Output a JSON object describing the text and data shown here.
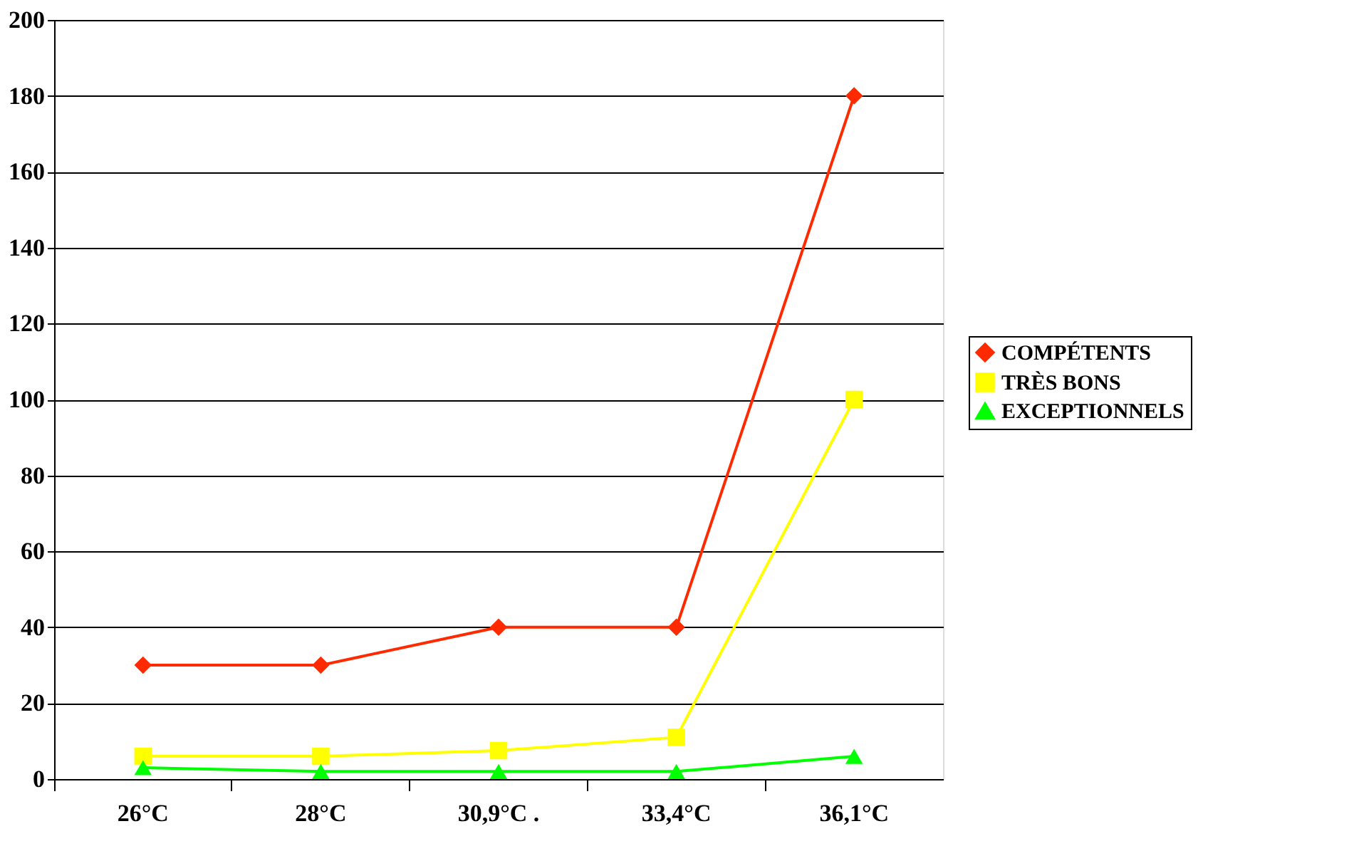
{
  "chart_data": {
    "type": "line",
    "categories": [
      "26°C",
      "28°C",
      "30,9°C  .",
      "33,4°C",
      "36,1°C"
    ],
    "series": [
      {
        "name": "COMPÉTENTS",
        "color": "#ff2a00",
        "marker": "diamond",
        "values": [
          30,
          30,
          40,
          40,
          180
        ]
      },
      {
        "name": "TRÈS BONS",
        "color": "#ffff00",
        "marker": "square",
        "values": [
          6,
          6,
          7.5,
          11,
          100
        ]
      },
      {
        "name": "EXCEPTIONNELS",
        "color": "#00ff00",
        "marker": "triangle",
        "values": [
          3,
          2,
          2,
          2,
          6
        ]
      }
    ],
    "ylim": [
      0,
      200
    ],
    "yticks": [
      0,
      20,
      40,
      60,
      80,
      100,
      120,
      140,
      160,
      180,
      200
    ],
    "grid": "y",
    "legend": "right",
    "line_style": "solid"
  }
}
